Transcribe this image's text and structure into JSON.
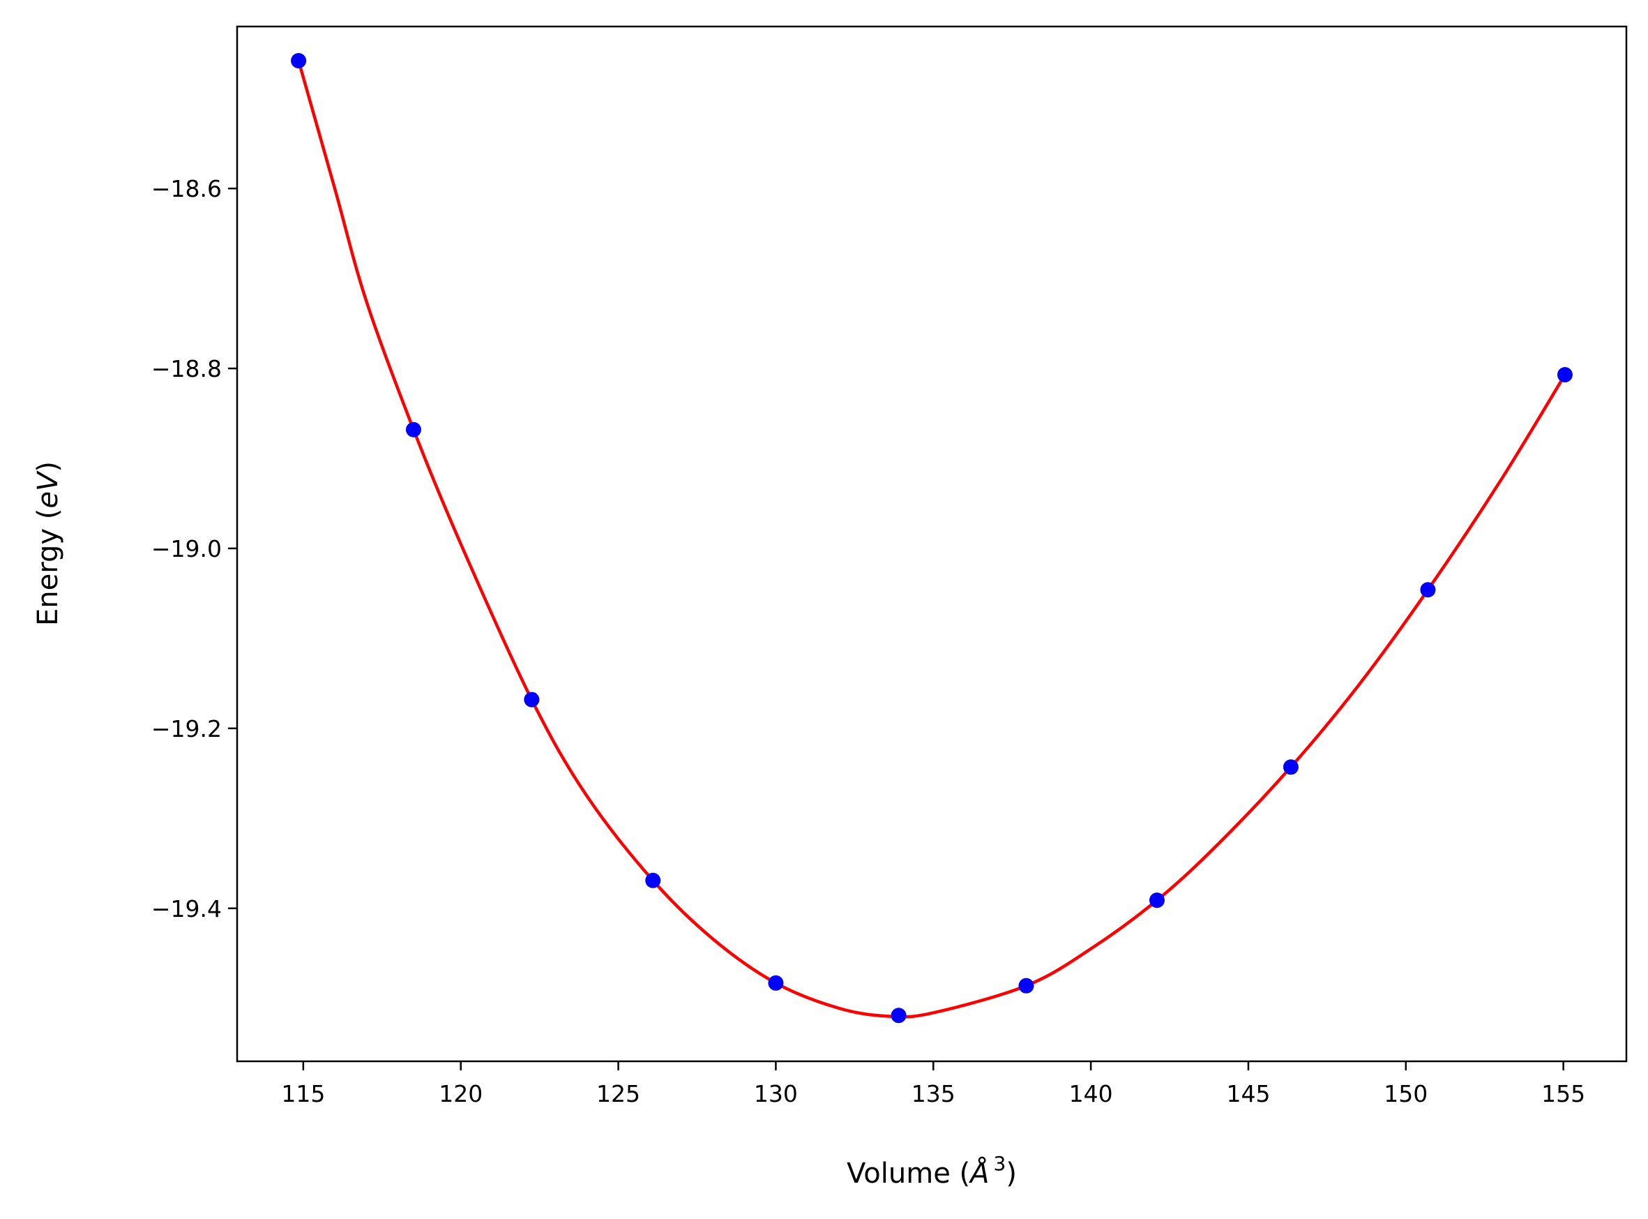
{
  "chart_data": {
    "type": "scatter",
    "title": "",
    "xlabel_main": "Volume (",
    "xlabel_unit": "Å",
    "xlabel_exp": "3",
    "xlabel_close": ")",
    "ylabel_main": "Energy (",
    "ylabel_unit": "eV",
    "ylabel_close": ")",
    "xlim": [
      112.9,
      157.0
    ],
    "ylim": [
      -19.57,
      -18.42
    ],
    "xticks": [
      115,
      120,
      125,
      130,
      135,
      140,
      145,
      150,
      155
    ],
    "xtick_labels": [
      "115",
      "120",
      "125",
      "130",
      "135",
      "140",
      "145",
      "150",
      "155"
    ],
    "yticks": [
      -18.6,
      -18.8,
      -19.0,
      -19.2,
      -19.4
    ],
    "ytick_labels": [
      "−18.6",
      "−18.8",
      "−19.0",
      "−19.2",
      "−19.4"
    ],
    "grid": false,
    "series": [
      {
        "kind": "points",
        "color": "#0000ff",
        "x": [
          114.85,
          118.5,
          122.25,
          126.1,
          130.0,
          133.9,
          137.95,
          142.1,
          146.35,
          150.7,
          155.05
        ],
        "y": [
          -18.458,
          -18.868,
          -19.168,
          -19.369,
          -19.483,
          -19.519,
          -19.486,
          -19.391,
          -19.243,
          -19.046,
          -18.807
        ]
      },
      {
        "kind": "fit-curve",
        "color": "#ff0000",
        "x": [
          114.85,
          116.0,
          117.0,
          118.5,
          120.0,
          122.25,
          124.0,
          126.1,
          128.0,
          130.0,
          132.0,
          133.6,
          135.0,
          137.95,
          140.0,
          142.1,
          144.0,
          146.35,
          148.5,
          150.7,
          153.0,
          155.05
        ],
        "y": [
          -18.458,
          -18.6,
          -18.725,
          -18.868,
          -18.995,
          -19.168,
          -19.275,
          -19.369,
          -19.434,
          -19.483,
          -19.511,
          -19.52,
          -19.516,
          -19.486,
          -19.445,
          -19.391,
          -19.33,
          -19.243,
          -19.152,
          -19.046,
          -18.925,
          -18.807
        ]
      }
    ]
  }
}
